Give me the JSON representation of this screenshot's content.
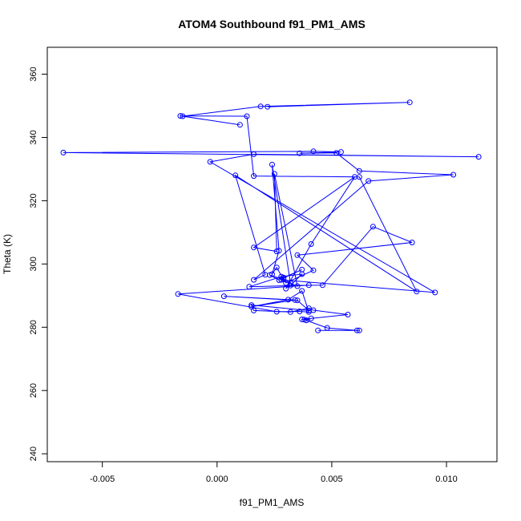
{
  "chart_data": {
    "type": "line",
    "title": "ATOM4 Southbound f91_PM1_AMS",
    "xlabel": "f91_PM1_AMS",
    "ylabel": "Theta (K)",
    "xlim": [
      -0.0074,
      0.0122
    ],
    "ylim": [
      237.5,
      368.5
    ],
    "xticks": [
      -0.005,
      0.0,
      0.005,
      0.01
    ],
    "xtick_labels": [
      "-0.005",
      "0.000",
      "0.005",
      "0.010"
    ],
    "yticks": [
      240,
      260,
      280,
      300,
      320,
      340,
      360
    ],
    "ytick_labels": [
      "240",
      "260",
      "280",
      "300",
      "320",
      "340",
      "360"
    ],
    "color": "#0000ff",
    "marker": "open-circle",
    "series": [
      {
        "name": "f91_PM1_AMS vs Theta",
        "points": [
          [
            0.0062,
            279.0
          ],
          [
            0.0044,
            279.0
          ],
          [
            0.0061,
            279.0
          ],
          [
            0.0048,
            279.8
          ],
          [
            0.0038,
            282.4
          ],
          [
            0.0041,
            282.8
          ],
          [
            0.0039,
            282.2
          ],
          [
            0.0037,
            282.5
          ],
          [
            0.0057,
            284.0
          ],
          [
            0.0042,
            285.4
          ],
          [
            0.004,
            286.0
          ],
          [
            0.0032,
            284.8
          ],
          [
            0.0016,
            285.3
          ],
          [
            0.0015,
            287.0
          ],
          [
            0.004,
            285.3
          ],
          [
            0.0035,
            288.5
          ],
          [
            0.0003,
            289.8
          ],
          [
            0.0034,
            288.6
          ],
          [
            0.0015,
            286.5
          ],
          [
            0.0031,
            288.7
          ],
          [
            0.0037,
            291.5
          ],
          [
            0.004,
            284.8
          ],
          [
            0.0036,
            285.0
          ],
          [
            0.0026,
            284.9
          ],
          [
            -0.0017,
            290.5
          ],
          [
            0.004,
            293.3
          ],
          [
            0.0014,
            292.8
          ],
          [
            0.0028,
            296.0
          ],
          [
            0.0037,
            296.8
          ],
          [
            0.0032,
            293.2
          ],
          [
            0.0046,
            293.3
          ],
          [
            0.0068,
            311.8
          ],
          [
            0.0085,
            306.8
          ],
          [
            0.0035,
            302.8
          ],
          [
            0.0042,
            298.0
          ],
          [
            0.003,
            294.0
          ],
          [
            0.0029,
            295.7
          ],
          [
            0.0037,
            298.2
          ],
          [
            0.0027,
            294.9
          ],
          [
            0.0023,
            296.5
          ],
          [
            0.0029,
            295.1
          ],
          [
            0.0026,
            298.9
          ],
          [
            0.0024,
            296.8
          ],
          [
            0.0027,
            304.2
          ],
          [
            0.0024,
            331.4
          ],
          [
            0.0032,
            293.9
          ],
          [
            0.003,
            292.2
          ],
          [
            0.0041,
            306.3
          ],
          [
            0.006,
            327.5
          ],
          [
            0.0016,
            305.2
          ],
          [
            0.0026,
            304.0
          ],
          [
            0.0025,
            328.5
          ],
          [
            0.0035,
            293.0
          ],
          [
            0.0028,
            295.0
          ],
          [
            0.0095,
            291.0
          ],
          [
            -0.0003,
            332.3
          ],
          [
            0.0016,
            334.7
          ],
          [
            0.0114,
            333.9
          ],
          [
            -0.0067,
            335.2
          ],
          [
            0.0042,
            335.6
          ],
          [
            0.0054,
            335.4
          ],
          [
            0.0036,
            335.0
          ],
          [
            0.0052,
            335.1
          ],
          [
            0.0062,
            329.4
          ],
          [
            0.0103,
            328.2
          ],
          [
            0.0066,
            326.2
          ],
          [
            0.0016,
            295.0
          ],
          [
            0.0021,
            296.6
          ],
          [
            0.0008,
            328.0
          ],
          [
            0.0087,
            291.3
          ],
          [
            0.0062,
            327.5
          ],
          [
            0.0016,
            327.8
          ],
          [
            0.0013,
            346.7
          ],
          [
            -0.0016,
            346.8
          ],
          [
            0.001,
            344.0
          ],
          [
            -0.0015,
            346.7
          ],
          [
            0.0019,
            349.8
          ],
          [
            0.0084,
            351.1
          ],
          [
            0.0022,
            349.7
          ]
        ]
      }
    ]
  }
}
